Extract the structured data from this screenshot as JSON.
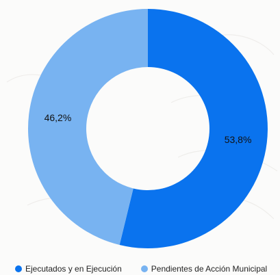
{
  "colors": {
    "executed": "#0a73ee",
    "pending": "#78b3f1"
  },
  "chart_data": {
    "type": "pie",
    "variant": "donut",
    "title": "",
    "categories": [
      "Ejecutados y en Ejecución",
      "Pendientes de Acción Municipal"
    ],
    "values": [
      53.8,
      46.2
    ],
    "data_labels": [
      "53,8%",
      "46,2%"
    ],
    "legend_position": "bottom"
  }
}
